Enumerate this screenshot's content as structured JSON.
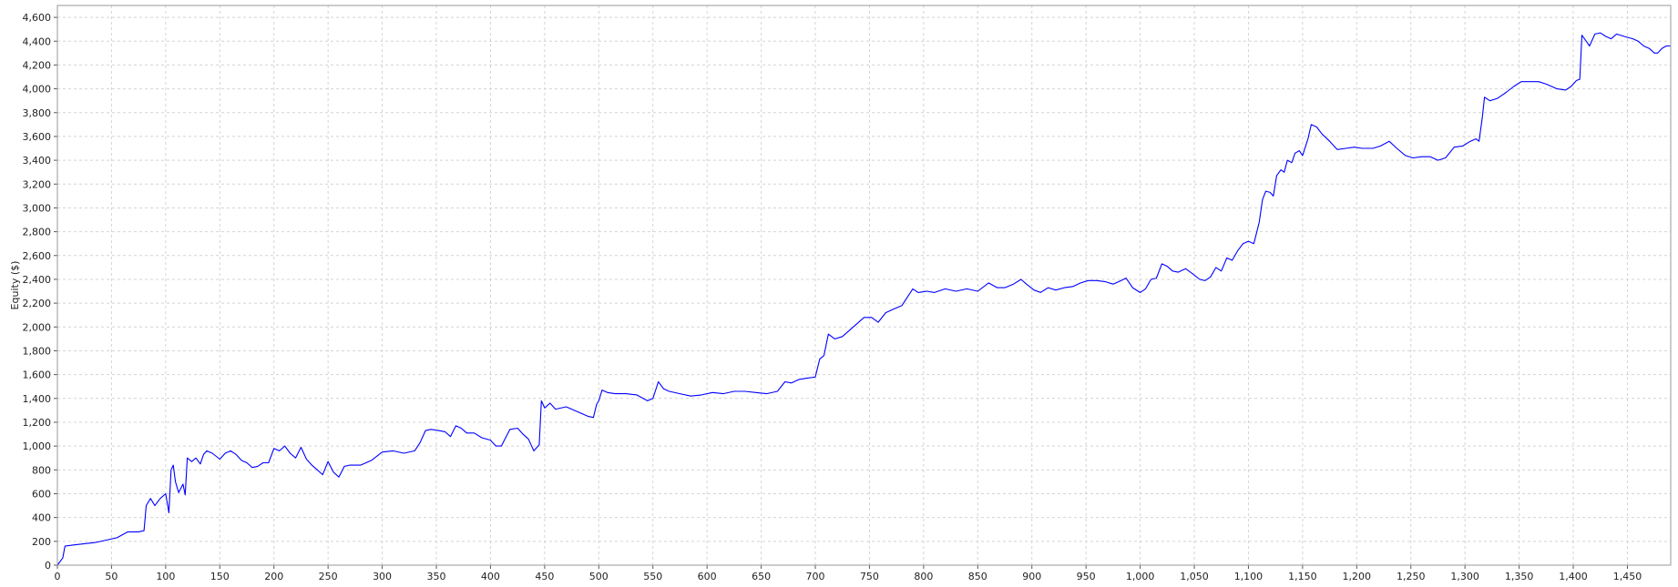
{
  "chart_data": {
    "type": "line",
    "title": "",
    "xlabel": "",
    "ylabel": "Equity ($)",
    "xlim": [
      0,
      1490
    ],
    "ylim": [
      0,
      4700
    ],
    "grid": true,
    "legend": "none",
    "line_color": "#0000ff",
    "grid_color": "#d4d4d4",
    "x_ticks": [
      0,
      50,
      100,
      150,
      200,
      250,
      300,
      350,
      400,
      450,
      500,
      550,
      600,
      650,
      700,
      750,
      800,
      850,
      900,
      950,
      1000,
      1050,
      1100,
      1150,
      1200,
      1250,
      1300,
      1350,
      1400,
      1450
    ],
    "x_tick_labels": [
      "0",
      "50",
      "100",
      "150",
      "200",
      "250",
      "300",
      "350",
      "400",
      "450",
      "500",
      "550",
      "600",
      "650",
      "700",
      "750",
      "800",
      "850",
      "900",
      "950",
      "1,000",
      "1,050",
      "1,100",
      "1,150",
      "1,200",
      "1,250",
      "1,300",
      "1,350",
      "1,400",
      "1,450"
    ],
    "y_ticks": [
      0,
      200,
      400,
      600,
      800,
      1000,
      1200,
      1400,
      1600,
      1800,
      2000,
      2200,
      2400,
      2600,
      2800,
      3000,
      3200,
      3400,
      3600,
      3800,
      4000,
      4200,
      4400,
      4600
    ],
    "y_tick_labels": [
      "0",
      "200",
      "400",
      "600",
      "800",
      "1,000",
      "1,200",
      "1,400",
      "1,600",
      "1,800",
      "2,000",
      "2,200",
      "2,400",
      "2,600",
      "2,800",
      "3,000",
      "3,200",
      "3,400",
      "3,600",
      "3,800",
      "4,000",
      "4,200",
      "4,400",
      "4,600"
    ],
    "series": [
      {
        "points": [
          [
            0,
            0
          ],
          [
            5,
            60
          ],
          [
            7,
            160
          ],
          [
            15,
            170
          ],
          [
            25,
            180
          ],
          [
            35,
            190
          ],
          [
            45,
            210
          ],
          [
            55,
            230
          ],
          [
            65,
            280
          ],
          [
            75,
            280
          ],
          [
            80,
            290
          ],
          [
            82,
            500
          ],
          [
            86,
            560
          ],
          [
            90,
            500
          ],
          [
            95,
            560
          ],
          [
            100,
            600
          ],
          [
            103,
            440
          ],
          [
            105,
            800
          ],
          [
            107,
            840
          ],
          [
            109,
            700
          ],
          [
            112,
            610
          ],
          [
            116,
            680
          ],
          [
            118,
            590
          ],
          [
            120,
            900
          ],
          [
            124,
            870
          ],
          [
            128,
            900
          ],
          [
            132,
            850
          ],
          [
            135,
            930
          ],
          [
            138,
            960
          ],
          [
            143,
            940
          ],
          [
            150,
            890
          ],
          [
            155,
            940
          ],
          [
            160,
            960
          ],
          [
            165,
            930
          ],
          [
            170,
            880
          ],
          [
            175,
            860
          ],
          [
            180,
            820
          ],
          [
            185,
            830
          ],
          [
            190,
            860
          ],
          [
            195,
            860
          ],
          [
            200,
            980
          ],
          [
            205,
            960
          ],
          [
            210,
            1000
          ],
          [
            215,
            940
          ],
          [
            220,
            900
          ],
          [
            225,
            990
          ],
          [
            230,
            890
          ],
          [
            235,
            840
          ],
          [
            240,
            800
          ],
          [
            245,
            760
          ],
          [
            250,
            870
          ],
          [
            255,
            780
          ],
          [
            260,
            740
          ],
          [
            265,
            830
          ],
          [
            270,
            840
          ],
          [
            280,
            840
          ],
          [
            290,
            880
          ],
          [
            300,
            950
          ],
          [
            310,
            960
          ],
          [
            320,
            940
          ],
          [
            330,
            960
          ],
          [
            335,
            1030
          ],
          [
            340,
            1130
          ],
          [
            345,
            1140
          ],
          [
            352,
            1130
          ],
          [
            358,
            1120
          ],
          [
            363,
            1080
          ],
          [
            368,
            1170
          ],
          [
            373,
            1150
          ],
          [
            378,
            1110
          ],
          [
            385,
            1110
          ],
          [
            392,
            1070
          ],
          [
            400,
            1050
          ],
          [
            405,
            1000
          ],
          [
            410,
            1000
          ],
          [
            418,
            1140
          ],
          [
            425,
            1150
          ],
          [
            430,
            1100
          ],
          [
            435,
            1060
          ],
          [
            440,
            960
          ],
          [
            445,
            1010
          ],
          [
            447,
            1380
          ],
          [
            450,
            1320
          ],
          [
            455,
            1360
          ],
          [
            460,
            1310
          ],
          [
            470,
            1330
          ],
          [
            480,
            1290
          ],
          [
            490,
            1250
          ],
          [
            495,
            1240
          ],
          [
            498,
            1350
          ],
          [
            500,
            1380
          ],
          [
            503,
            1470
          ],
          [
            508,
            1450
          ],
          [
            515,
            1440
          ],
          [
            525,
            1440
          ],
          [
            535,
            1430
          ],
          [
            545,
            1380
          ],
          [
            550,
            1400
          ],
          [
            555,
            1540
          ],
          [
            560,
            1480
          ],
          [
            565,
            1460
          ],
          [
            575,
            1440
          ],
          [
            585,
            1420
          ],
          [
            595,
            1430
          ],
          [
            605,
            1450
          ],
          [
            615,
            1440
          ],
          [
            625,
            1460
          ],
          [
            635,
            1460
          ],
          [
            645,
            1450
          ],
          [
            655,
            1440
          ],
          [
            665,
            1460
          ],
          [
            672,
            1540
          ],
          [
            678,
            1530
          ],
          [
            685,
            1560
          ],
          [
            692,
            1570
          ],
          [
            700,
            1580
          ],
          [
            704,
            1730
          ],
          [
            708,
            1760
          ],
          [
            712,
            1940
          ],
          [
            718,
            1900
          ],
          [
            725,
            1920
          ],
          [
            735,
            2000
          ],
          [
            745,
            2080
          ],
          [
            752,
            2080
          ],
          [
            758,
            2040
          ],
          [
            765,
            2120
          ],
          [
            772,
            2150
          ],
          [
            780,
            2180
          ],
          [
            785,
            2250
          ],
          [
            790,
            2320
          ],
          [
            795,
            2290
          ],
          [
            803,
            2300
          ],
          [
            810,
            2290
          ],
          [
            820,
            2320
          ],
          [
            830,
            2300
          ],
          [
            840,
            2320
          ],
          [
            850,
            2300
          ],
          [
            860,
            2370
          ],
          [
            868,
            2330
          ],
          [
            875,
            2330
          ],
          [
            883,
            2360
          ],
          [
            890,
            2400
          ],
          [
            895,
            2360
          ],
          [
            902,
            2310
          ],
          [
            908,
            2290
          ],
          [
            915,
            2330
          ],
          [
            922,
            2310
          ],
          [
            930,
            2330
          ],
          [
            938,
            2340
          ],
          [
            945,
            2370
          ],
          [
            952,
            2390
          ],
          [
            960,
            2390
          ],
          [
            968,
            2380
          ],
          [
            975,
            2360
          ],
          [
            980,
            2380
          ],
          [
            987,
            2410
          ],
          [
            993,
            2330
          ],
          [
            1000,
            2290
          ],
          [
            1005,
            2320
          ],
          [
            1010,
            2400
          ],
          [
            1015,
            2410
          ],
          [
            1020,
            2530
          ],
          [
            1025,
            2510
          ],
          [
            1030,
            2470
          ],
          [
            1035,
            2460
          ],
          [
            1042,
            2490
          ],
          [
            1048,
            2450
          ],
          [
            1055,
            2400
          ],
          [
            1060,
            2390
          ],
          [
            1065,
            2420
          ],
          [
            1070,
            2500
          ],
          [
            1075,
            2470
          ],
          [
            1080,
            2580
          ],
          [
            1085,
            2560
          ],
          [
            1090,
            2640
          ],
          [
            1095,
            2700
          ],
          [
            1100,
            2720
          ],
          [
            1105,
            2700
          ],
          [
            1110,
            2880
          ],
          [
            1113,
            3070
          ],
          [
            1116,
            3140
          ],
          [
            1120,
            3130
          ],
          [
            1123,
            3100
          ],
          [
            1126,
            3270
          ],
          [
            1130,
            3320
          ],
          [
            1133,
            3300
          ],
          [
            1136,
            3400
          ],
          [
            1140,
            3380
          ],
          [
            1143,
            3460
          ],
          [
            1147,
            3480
          ],
          [
            1150,
            3440
          ],
          [
            1155,
            3580
          ],
          [
            1158,
            3700
          ],
          [
            1163,
            3680
          ],
          [
            1168,
            3620
          ],
          [
            1175,
            3560
          ],
          [
            1182,
            3490
          ],
          [
            1190,
            3500
          ],
          [
            1198,
            3510
          ],
          [
            1205,
            3500
          ],
          [
            1215,
            3500
          ],
          [
            1222,
            3520
          ],
          [
            1230,
            3560
          ],
          [
            1237,
            3500
          ],
          [
            1245,
            3440
          ],
          [
            1252,
            3420
          ],
          [
            1260,
            3430
          ],
          [
            1268,
            3430
          ],
          [
            1275,
            3400
          ],
          [
            1282,
            3420
          ],
          [
            1290,
            3510
          ],
          [
            1298,
            3520
          ],
          [
            1305,
            3560
          ],
          [
            1310,
            3580
          ],
          [
            1313,
            3560
          ],
          [
            1316,
            3760
          ],
          [
            1318,
            3930
          ],
          [
            1323,
            3900
          ],
          [
            1330,
            3920
          ],
          [
            1338,
            3970
          ],
          [
            1345,
            4020
          ],
          [
            1352,
            4060
          ],
          [
            1360,
            4060
          ],
          [
            1368,
            4060
          ],
          [
            1375,
            4040
          ],
          [
            1385,
            4000
          ],
          [
            1393,
            3990
          ],
          [
            1398,
            4020
          ],
          [
            1403,
            4070
          ],
          [
            1406,
            4080
          ],
          [
            1408,
            4450
          ],
          [
            1412,
            4400
          ],
          [
            1415,
            4360
          ],
          [
            1420,
            4460
          ],
          [
            1425,
            4470
          ],
          [
            1430,
            4440
          ],
          [
            1435,
            4420
          ],
          [
            1440,
            4460
          ],
          [
            1447,
            4440
          ],
          [
            1455,
            4420
          ],
          [
            1460,
            4400
          ],
          [
            1465,
            4360
          ],
          [
            1470,
            4340
          ],
          [
            1475,
            4300
          ],
          [
            1478,
            4300
          ],
          [
            1482,
            4340
          ],
          [
            1486,
            4360
          ],
          [
            1490,
            4360
          ]
        ]
      }
    ]
  }
}
